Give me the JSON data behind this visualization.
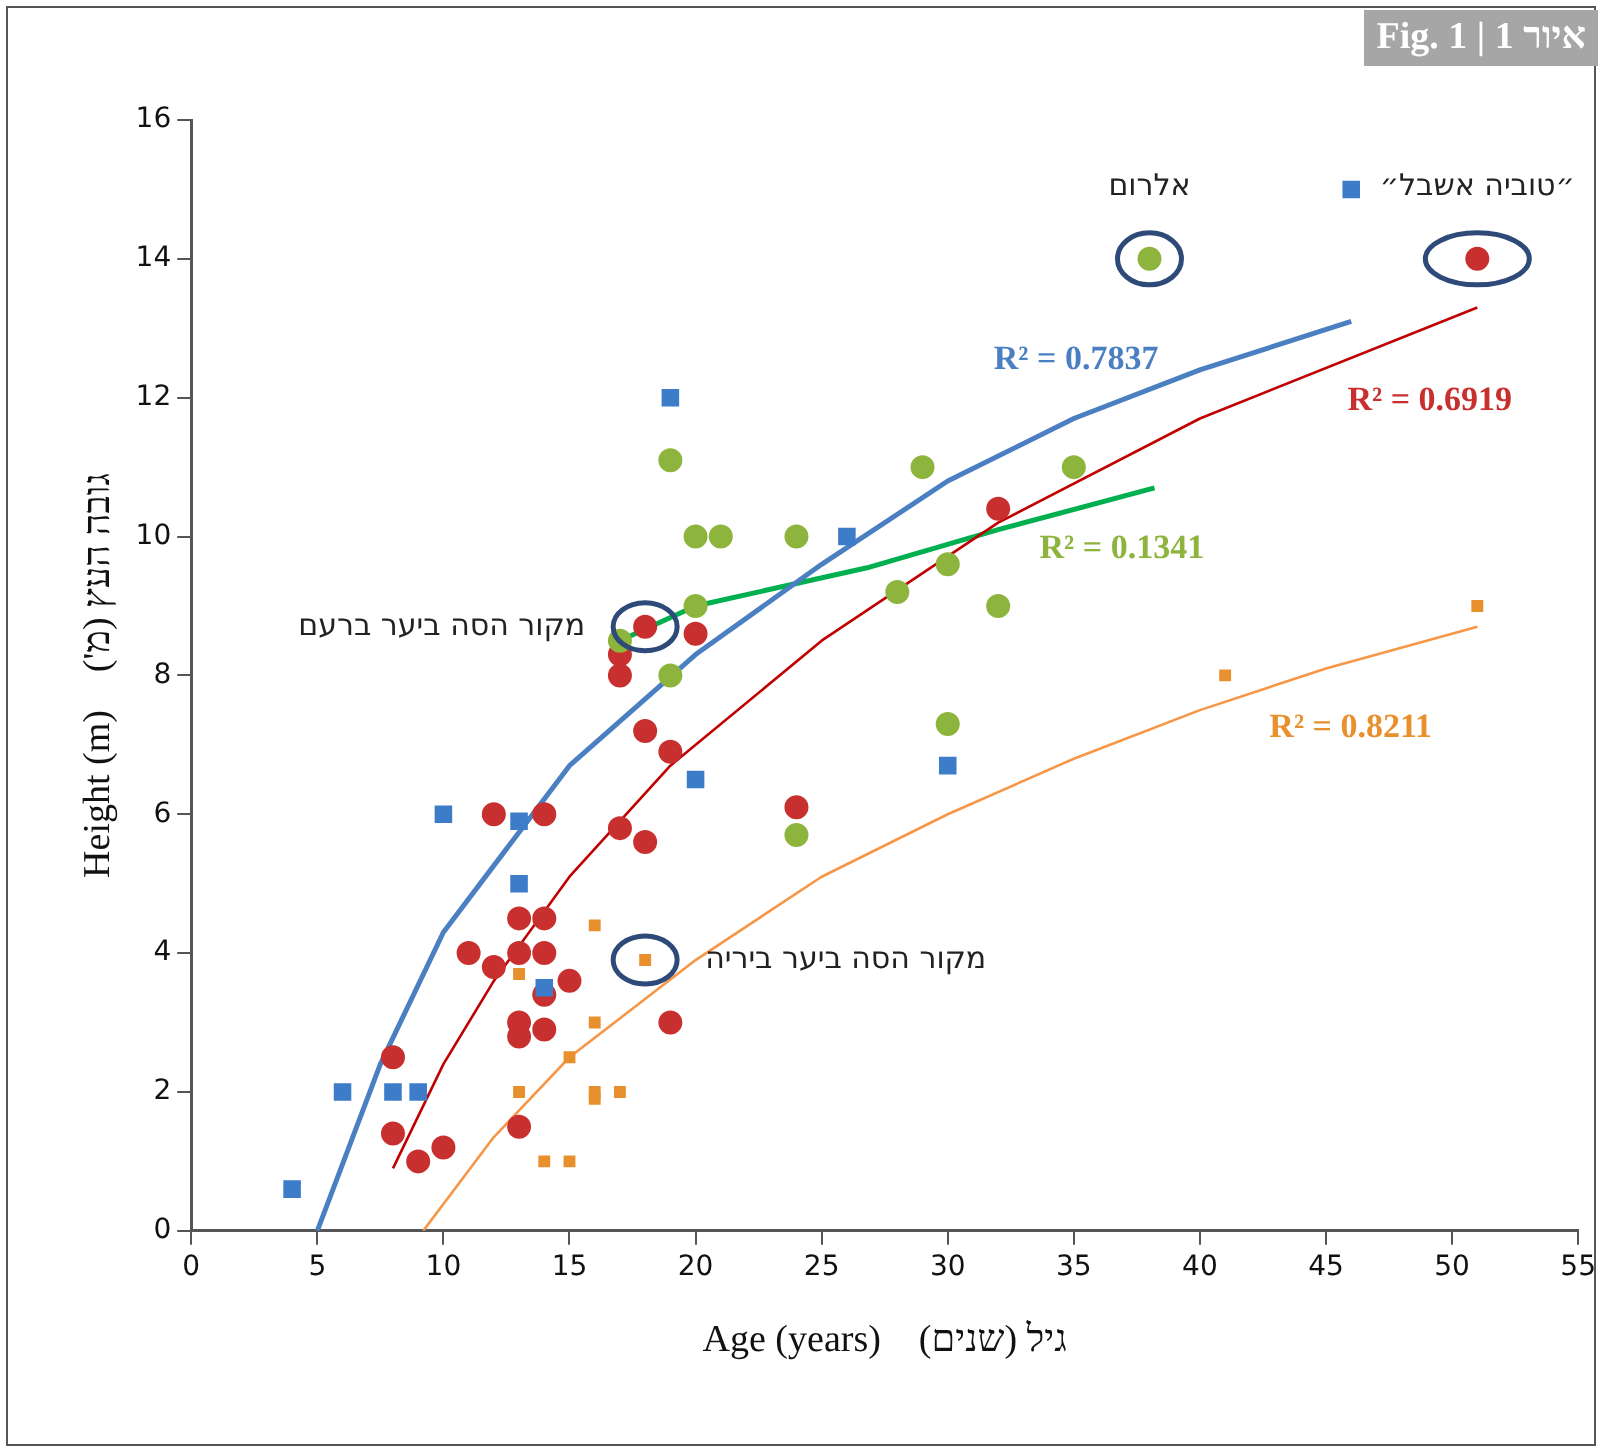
{
  "chart_data": {
    "type": "scatter",
    "title": "איור 1 | Fig. 1",
    "xlabel": "Age (years)    גיל (שנים)",
    "ylabel": "Height (m)    גובה העץ (מ')",
    "xlim": [
      0,
      55
    ],
    "xticks": [
      0,
      5,
      10,
      15,
      20,
      25,
      30,
      35,
      40,
      45,
      50,
      55
    ],
    "ylim": [
      0,
      16
    ],
    "yticks": [
      0,
      2,
      4,
      6,
      8,
      10,
      12,
      14,
      16
    ],
    "grid": false,
    "legend": false,
    "series": [
      {
        "type": "scatter",
        "marker": "square",
        "color": "#3d7cc9",
        "x": [
          4,
          6,
          8,
          9,
          10,
          13,
          13,
          14,
          19,
          20,
          26,
          30,
          46
        ],
        "values": [
          0.6,
          2,
          2,
          2,
          6,
          5.9,
          5,
          3.5,
          12,
          6.5,
          10,
          6.7,
          15
        ]
      },
      {
        "type": "scatter",
        "marker": "circle",
        "color": "#8db43c",
        "x": [
          17,
          19,
          20,
          21,
          20,
          19,
          24,
          29,
          28,
          30,
          32,
          35,
          30,
          24,
          38
        ],
        "values": [
          8.5,
          11.1,
          10,
          10,
          9,
          8,
          10,
          11,
          9.2,
          9.6,
          9,
          11,
          7.3,
          5.7,
          14
        ]
      },
      {
        "type": "scatter",
        "marker": "circle",
        "color": "#c8302f",
        "x": [
          8,
          8,
          9,
          10,
          13,
          11,
          12,
          12,
          14,
          13,
          14,
          13,
          14,
          14,
          15,
          13,
          13,
          14,
          19,
          17,
          18,
          18,
          19,
          17,
          17,
          18,
          20,
          32,
          24,
          51
        ],
        "values": [
          2.5,
          1.4,
          1,
          1.2,
          1.5,
          4,
          3.8,
          6,
          6,
          4.5,
          4.5,
          4,
          4,
          3.4,
          3.6,
          3,
          2.8,
          2.9,
          3,
          5.8,
          5.6,
          7.2,
          6.9,
          8,
          8.3,
          8.7,
          8.6,
          10.4,
          6.1,
          14
        ]
      },
      {
        "type": "scatter",
        "marker": "square",
        "color": "#e8902e",
        "x": [
          16,
          18,
          13,
          16,
          15,
          13,
          16,
          16,
          17,
          14,
          15,
          41,
          51
        ],
        "values": [
          4.4,
          3.9,
          3.7,
          3,
          2.5,
          2,
          2,
          1.9,
          2,
          1,
          1,
          8,
          9
        ]
      },
      {
        "type": "line",
        "marker": "none",
        "color": "#4a7fc1",
        "x": [
          5,
          7.5,
          10,
          15,
          20,
          25,
          30,
          35,
          40,
          46
        ],
        "values": [
          0,
          2.4,
          4.3,
          6.7,
          8.3,
          9.6,
          10.8,
          11.7,
          12.4,
          13.1
        ]
      },
      {
        "type": "line",
        "marker": "none",
        "color": "#c00000",
        "x": [
          8,
          10,
          12,
          15,
          19,
          25,
          32,
          40,
          51
        ],
        "values": [
          0.9,
          2.4,
          3.6,
          5.1,
          6.7,
          8.5,
          10.2,
          11.7,
          13.3
        ]
      },
      {
        "type": "line",
        "marker": "none",
        "color": "#00b050",
        "x": [
          17,
          20,
          26.8,
          32,
          38.2
        ],
        "values": [
          8.5,
          9,
          9.55,
          10.1,
          10.7
        ]
      },
      {
        "type": "line",
        "marker": "none",
        "color": "#f79646",
        "x": [
          9.2,
          12,
          15,
          20,
          25,
          30,
          35,
          40,
          45,
          51
        ],
        "values": [
          0,
          1.35,
          2.5,
          3.9,
          5.1,
          6,
          6.8,
          7.5,
          8.1,
          8.7
        ]
      }
    ],
    "annotations": [
      {
        "text": "אלרום",
        "x": 38,
        "y": 14
      },
      {
        "text": "״טוביה אשבל״",
        "x": 51,
        "y": 14
      },
      {
        "text": "מקור הסה ביער ברעם",
        "x": 18,
        "y": 8.7
      },
      {
        "text": "מקור הסה ביער ביריה",
        "x": 18,
        "y": 3.9
      },
      "R² = 0.7837",
      "R² = 0.6919",
      "R² = 0.1341",
      "R² = 0.8211"
    ]
  }
}
